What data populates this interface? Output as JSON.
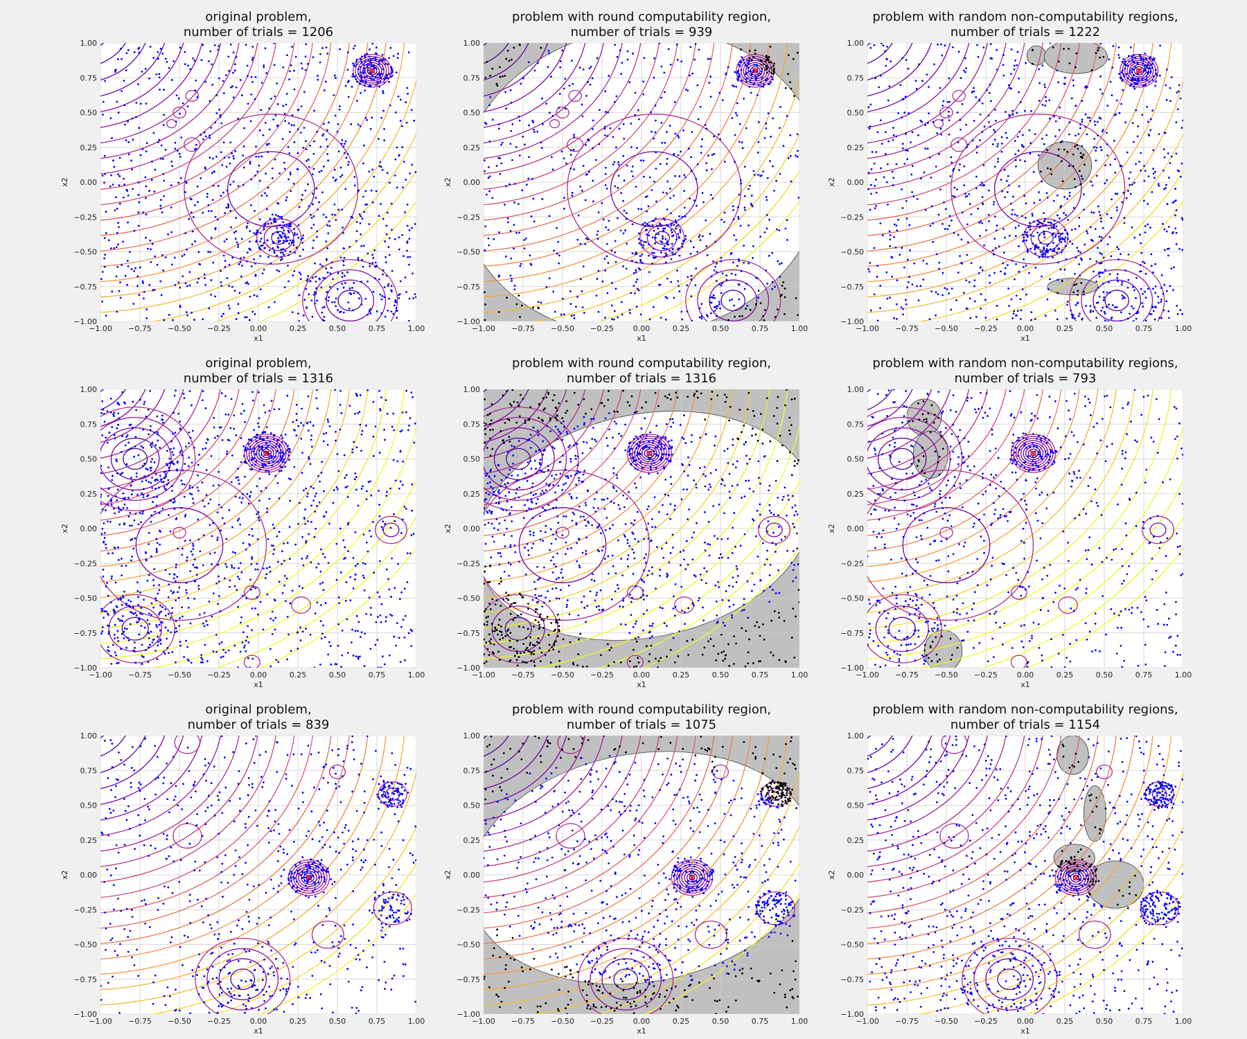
{
  "figure": {
    "background": "#f0f0f0",
    "plot_background": "#ffffff",
    "region_color": "#c0c0c0",
    "point_color": "#0000ff",
    "excluded_point_color": "#000000",
    "optimum_color": "#ff0000",
    "grid_color": "#cccccc"
  },
  "chart_data": [
    {
      "type": "scatter",
      "row": 0,
      "col": 0,
      "title_line1": "original problem,",
      "title_line2": "number of trials = 1206",
      "xlabel": "x1",
      "ylabel": "x2",
      "xlim": [
        -1,
        1
      ],
      "ylim": [
        -1,
        1
      ],
      "xticks": [
        "−1.00",
        "−0.75",
        "−0.50",
        "−0.25",
        "0.00",
        "0.25",
        "0.50",
        "0.75",
        "1.00"
      ],
      "yticks": [
        "−1.00",
        "−0.75",
        "−0.50",
        "−0.25",
        "0.00",
        "0.25",
        "0.50",
        "0.75",
        "1.00"
      ],
      "grid": true,
      "variant": "original",
      "trials": 1206,
      "seed": 11,
      "optimum": [
        0.72,
        0.8
      ],
      "centers": [
        {
          "x": 0.72,
          "y": 0.8,
          "r": 0.12,
          "rings": 8
        },
        {
          "x": 0.08,
          "y": -0.05,
          "r": 0.55,
          "rings": 2
        },
        {
          "x": 0.58,
          "y": -0.85,
          "r": 0.3,
          "rings": 4
        },
        {
          "x": 0.13,
          "y": -0.4,
          "r": 0.14,
          "rings": 3
        },
        {
          "x": -0.42,
          "y": 0.62,
          "r": 0.04,
          "rings": 1
        },
        {
          "x": -0.5,
          "y": 0.5,
          "r": 0.04,
          "rings": 1
        },
        {
          "x": -0.55,
          "y": 0.42,
          "r": 0.03,
          "rings": 1
        },
        {
          "x": -0.42,
          "y": 0.27,
          "r": 0.05,
          "rings": 1
        }
      ],
      "regions": []
    },
    {
      "type": "scatter",
      "row": 0,
      "col": 1,
      "title_line1": "problem with round computability region,",
      "title_line2": "number of trials = 939",
      "xlabel": "x1",
      "ylabel": "x2",
      "xlim": [
        -1,
        1
      ],
      "ylim": [
        -1,
        1
      ],
      "xticks": [
        "−1.00",
        "−0.75",
        "−0.50",
        "−0.25",
        "0.00",
        "0.25",
        "0.50",
        "0.75",
        "1.00"
      ],
      "yticks": [
        "−1.00",
        "−0.75",
        "−0.50",
        "−0.25",
        "0.00",
        "0.25",
        "0.50",
        "0.75",
        "1.00"
      ],
      "grid": true,
      "variant": "round",
      "trials": 939,
      "seed": 23,
      "optimum": [
        0.72,
        0.8
      ],
      "centers": [
        {
          "x": 0.72,
          "y": 0.8,
          "r": 0.12,
          "rings": 8
        },
        {
          "x": 0.08,
          "y": -0.05,
          "r": 0.55,
          "rings": 2
        },
        {
          "x": 0.58,
          "y": -0.85,
          "r": 0.3,
          "rings": 4
        },
        {
          "x": 0.13,
          "y": -0.4,
          "r": 0.14,
          "rings": 3
        },
        {
          "x": -0.42,
          "y": 0.62,
          "r": 0.04,
          "rings": 1
        },
        {
          "x": -0.5,
          "y": 0.5,
          "r": 0.04,
          "rings": 1
        },
        {
          "x": -0.55,
          "y": 0.42,
          "r": 0.03,
          "rings": 1
        },
        {
          "x": -0.42,
          "y": 0.27,
          "r": 0.05,
          "rings": 1
        }
      ],
      "regions": [
        {
          "cx": 0.0,
          "cy": 0.0,
          "rx": 1.15,
          "ry": 1.1,
          "rot": -8
        }
      ]
    },
    {
      "type": "scatter",
      "row": 0,
      "col": 2,
      "title_line1": "problem with random non-computability regions,",
      "title_line2": "number of trials = 1222",
      "xlabel": "x1",
      "ylabel": "x2",
      "xlim": [
        -1,
        1
      ],
      "ylim": [
        -1,
        1
      ],
      "xticks": [
        "−1.00",
        "−0.75",
        "−0.50",
        "−0.25",
        "0.00",
        "0.25",
        "0.50",
        "0.75",
        "1.00"
      ],
      "yticks": [
        "−1.00",
        "−0.75",
        "−0.50",
        "−0.25",
        "0.00",
        "0.25",
        "0.50",
        "0.75",
        "1.00"
      ],
      "grid": true,
      "variant": "random",
      "trials": 1222,
      "seed": 37,
      "optimum": [
        0.72,
        0.8
      ],
      "centers": [
        {
          "x": 0.72,
          "y": 0.8,
          "r": 0.12,
          "rings": 8
        },
        {
          "x": 0.08,
          "y": -0.05,
          "r": 0.55,
          "rings": 2
        },
        {
          "x": 0.58,
          "y": -0.85,
          "r": 0.3,
          "rings": 4
        },
        {
          "x": 0.13,
          "y": -0.4,
          "r": 0.14,
          "rings": 3
        },
        {
          "x": -0.42,
          "y": 0.62,
          "r": 0.04,
          "rings": 1
        },
        {
          "x": -0.5,
          "y": 0.5,
          "r": 0.04,
          "rings": 1
        },
        {
          "x": -0.55,
          "y": 0.42,
          "r": 0.03,
          "rings": 1
        },
        {
          "x": -0.42,
          "y": 0.27,
          "r": 0.05,
          "rings": 1
        }
      ],
      "regions": [
        {
          "cx": 0.07,
          "cy": 0.91,
          "rx": 0.06,
          "ry": 0.07,
          "rot": 0
        },
        {
          "cx": 0.32,
          "cy": 0.9,
          "rx": 0.2,
          "ry": 0.12,
          "rot": 0
        },
        {
          "cx": 0.25,
          "cy": 0.12,
          "rx": 0.17,
          "ry": 0.17,
          "rot": 0
        },
        {
          "cx": 0.3,
          "cy": -0.75,
          "rx": 0.16,
          "ry": 0.06,
          "rot": 0
        }
      ]
    },
    {
      "type": "scatter",
      "row": 1,
      "col": 0,
      "title_line1": "original problem,",
      "title_line2": "number of trials = 1316",
      "xlabel": "x1",
      "ylabel": "x2",
      "xlim": [
        -1,
        1
      ],
      "ylim": [
        -1,
        1
      ],
      "xticks": [
        "−1.00",
        "−0.75",
        "−0.50",
        "−0.25",
        "0.00",
        "0.25",
        "0.50",
        "0.75",
        "1.00"
      ],
      "yticks": [
        "−1.00",
        "−0.75",
        "−0.50",
        "−0.25",
        "0.00",
        "0.25",
        "0.50",
        "0.75",
        "1.00"
      ],
      "grid": true,
      "variant": "original",
      "trials": 1316,
      "seed": 41,
      "optimum": [
        0.05,
        0.54
      ],
      "centers": [
        {
          "x": 0.05,
          "y": 0.54,
          "r": 0.14,
          "rings": 9
        },
        {
          "x": -0.78,
          "y": 0.5,
          "r": 0.38,
          "rings": 5
        },
        {
          "x": -0.5,
          "y": -0.12,
          "r": 0.55,
          "rings": 2
        },
        {
          "x": -0.78,
          "y": -0.72,
          "r": 0.25,
          "rings": 3
        },
        {
          "x": 0.84,
          "y": -0.01,
          "r": 0.1,
          "rings": 2
        },
        {
          "x": -0.5,
          "y": -0.03,
          "r": 0.04,
          "rings": 1
        },
        {
          "x": -0.04,
          "y": -0.46,
          "r": 0.05,
          "rings": 1
        },
        {
          "x": 0.27,
          "y": -0.55,
          "r": 0.06,
          "rings": 1
        },
        {
          "x": -0.04,
          "y": -0.96,
          "r": 0.05,
          "rings": 1
        }
      ],
      "regions": []
    },
    {
      "type": "scatter",
      "row": 1,
      "col": 1,
      "title_line1": "problem with round computability region,",
      "title_line2": "number of trials = 1316",
      "xlabel": "x1",
      "ylabel": "x2",
      "xlim": [
        -1,
        1
      ],
      "ylim": [
        -1,
        1
      ],
      "xticks": [
        "−1.00",
        "−0.75",
        "−0.50",
        "−0.25",
        "0.00",
        "0.25",
        "0.50",
        "0.75",
        "1.00"
      ],
      "yticks": [
        "−1.00",
        "−0.75",
        "−0.50",
        "−0.25",
        "0.00",
        "0.25",
        "0.50",
        "0.75",
        "1.00"
      ],
      "grid": true,
      "variant": "round",
      "trials": 1316,
      "seed": 53,
      "optimum": [
        0.05,
        0.54
      ],
      "centers": [
        {
          "x": 0.05,
          "y": 0.54,
          "r": 0.14,
          "rings": 9
        },
        {
          "x": -0.78,
          "y": 0.5,
          "r": 0.38,
          "rings": 5
        },
        {
          "x": -0.5,
          "y": -0.12,
          "r": 0.55,
          "rings": 2
        },
        {
          "x": -0.78,
          "y": -0.72,
          "r": 0.25,
          "rings": 3
        },
        {
          "x": 0.84,
          "y": -0.01,
          "r": 0.1,
          "rings": 2
        },
        {
          "x": -0.5,
          "y": -0.03,
          "r": 0.04,
          "rings": 1
        },
        {
          "x": -0.04,
          "y": -0.46,
          "r": 0.05,
          "rings": 1
        },
        {
          "x": 0.27,
          "y": -0.55,
          "r": 0.06,
          "rings": 1
        },
        {
          "x": -0.04,
          "y": -0.96,
          "r": 0.05,
          "rings": 1
        }
      ],
      "regions": [
        {
          "cx": 0.02,
          "cy": 0.02,
          "rx": 1.08,
          "ry": 0.8,
          "rot": -12
        }
      ]
    },
    {
      "type": "scatter",
      "row": 1,
      "col": 2,
      "title_line1": "problem with random non-computability regions,",
      "title_line2": "number of trials = 793",
      "xlabel": "x1",
      "ylabel": "x2",
      "xlim": [
        -1,
        1
      ],
      "ylim": [
        -1,
        1
      ],
      "xticks": [
        "−1.00",
        "−0.75",
        "−0.50",
        "−0.25",
        "0.00",
        "0.25",
        "0.50",
        "0.75",
        "1.00"
      ],
      "yticks": [
        "−1.00",
        "−0.75",
        "−0.50",
        "−0.25",
        "0.00",
        "0.25",
        "0.50",
        "0.75",
        "1.00"
      ],
      "grid": true,
      "variant": "random",
      "trials": 793,
      "seed": 67,
      "optimum": [
        0.05,
        0.54
      ],
      "centers": [
        {
          "x": 0.05,
          "y": 0.54,
          "r": 0.14,
          "rings": 9
        },
        {
          "x": -0.78,
          "y": 0.5,
          "r": 0.38,
          "rings": 5
        },
        {
          "x": -0.5,
          "y": -0.12,
          "r": 0.55,
          "rings": 2
        },
        {
          "x": -0.78,
          "y": -0.72,
          "r": 0.25,
          "rings": 3
        },
        {
          "x": 0.84,
          "y": -0.01,
          "r": 0.1,
          "rings": 2
        },
        {
          "x": -0.5,
          "y": -0.03,
          "r": 0.04,
          "rings": 1
        },
        {
          "x": -0.04,
          "y": -0.46,
          "r": 0.05,
          "rings": 1
        },
        {
          "x": 0.27,
          "y": -0.55,
          "r": 0.06,
          "rings": 1
        },
        {
          "x": -0.04,
          "y": -0.96,
          "r": 0.05,
          "rings": 1
        }
      ],
      "regions": [
        {
          "cx": -0.64,
          "cy": 0.8,
          "rx": 0.11,
          "ry": 0.13,
          "rot": 0
        },
        {
          "cx": -0.6,
          "cy": 0.53,
          "rx": 0.11,
          "ry": 0.17,
          "rot": 0
        },
        {
          "cx": -0.52,
          "cy": -0.88,
          "rx": 0.12,
          "ry": 0.15,
          "rot": 0
        }
      ]
    },
    {
      "type": "scatter",
      "row": 2,
      "col": 0,
      "title_line1": "original problem,",
      "title_line2": "number of trials = 839",
      "xlabel": "x1",
      "ylabel": "x2",
      "xlim": [
        -1,
        1
      ],
      "ylim": [
        -1,
        1
      ],
      "xticks": [
        "−1.00",
        "−0.75",
        "−0.50",
        "−0.25",
        "0.00",
        "0.25",
        "0.50",
        "0.75",
        "1.00"
      ],
      "yticks": [
        "−1.00",
        "−0.75",
        "−0.50",
        "−0.25",
        "0.00",
        "0.25",
        "0.50",
        "0.75",
        "1.00"
      ],
      "grid": true,
      "variant": "original",
      "trials": 839,
      "seed": 71,
      "optimum": [
        0.32,
        -0.02
      ],
      "centers": [
        {
          "x": 0.32,
          "y": -0.02,
          "r": 0.13,
          "rings": 8
        },
        {
          "x": -0.1,
          "y": -0.75,
          "r": 0.3,
          "rings": 4
        },
        {
          "x": 0.85,
          "y": 0.58,
          "r": 0.09,
          "rings": 2
        },
        {
          "x": 0.85,
          "y": -0.24,
          "r": 0.12,
          "rings": 1
        },
        {
          "x": 0.44,
          "y": -0.43,
          "r": 0.1,
          "rings": 1
        },
        {
          "x": 0.5,
          "y": 0.74,
          "r": 0.05,
          "rings": 1
        },
        {
          "x": -0.45,
          "y": 0.28,
          "r": 0.09,
          "rings": 1
        },
        {
          "x": -0.45,
          "y": 0.95,
          "r": 0.08,
          "rings": 1
        }
      ],
      "regions": []
    },
    {
      "type": "scatter",
      "row": 2,
      "col": 1,
      "title_line1": "problem with round computability region,",
      "title_line2": "number of trials = 1075",
      "xlabel": "x1",
      "ylabel": "x2",
      "xlim": [
        -1,
        1
      ],
      "ylim": [
        -1,
        1
      ],
      "xticks": [
        "−1.00",
        "−0.75",
        "−0.50",
        "−0.25",
        "0.00",
        "0.25",
        "0.50",
        "0.75",
        "1.00"
      ],
      "yticks": [
        "−1.00",
        "−0.75",
        "−0.50",
        "−0.25",
        "0.00",
        "0.25",
        "0.50",
        "0.75",
        "1.00"
      ],
      "grid": true,
      "variant": "round",
      "trials": 1075,
      "seed": 83,
      "optimum": [
        0.32,
        -0.02
      ],
      "centers": [
        {
          "x": 0.32,
          "y": -0.02,
          "r": 0.13,
          "rings": 8
        },
        {
          "x": -0.1,
          "y": -0.75,
          "r": 0.3,
          "rings": 4
        },
        {
          "x": 0.85,
          "y": 0.58,
          "r": 0.09,
          "rings": 2
        },
        {
          "x": 0.85,
          "y": -0.24,
          "r": 0.12,
          "rings": 1
        },
        {
          "x": 0.44,
          "y": -0.43,
          "r": 0.1,
          "rings": 1
        },
        {
          "x": 0.5,
          "y": 0.74,
          "r": 0.05,
          "rings": 1
        },
        {
          "x": -0.45,
          "y": 0.28,
          "r": 0.09,
          "rings": 1
        },
        {
          "x": -0.45,
          "y": 0.95,
          "r": 0.08,
          "rings": 1
        }
      ],
      "regions": [
        {
          "cx": 0.0,
          "cy": 0.05,
          "rx": 1.1,
          "ry": 0.82,
          "rot": -10
        }
      ]
    },
    {
      "type": "scatter",
      "row": 2,
      "col": 2,
      "title_line1": "problem with random non-computability regions,",
      "title_line2": "number of trials = 1154",
      "xlabel": "x1",
      "ylabel": "x2",
      "xlim": [
        -1,
        1
      ],
      "ylim": [
        -1,
        1
      ],
      "xticks": [
        "−1.00",
        "−0.75",
        "−0.50",
        "−0.25",
        "0.00",
        "0.25",
        "0.50",
        "0.75",
        "1.00"
      ],
      "yticks": [
        "−1.00",
        "−0.75",
        "−0.50",
        "−0.25",
        "0.00",
        "0.25",
        "0.50",
        "0.75",
        "1.00"
      ],
      "grid": true,
      "variant": "random",
      "trials": 1154,
      "seed": 97,
      "optimum": [
        0.32,
        -0.02
      ],
      "centers": [
        {
          "x": 0.32,
          "y": -0.02,
          "r": 0.13,
          "rings": 8
        },
        {
          "x": -0.1,
          "y": -0.75,
          "r": 0.3,
          "rings": 4
        },
        {
          "x": 0.85,
          "y": 0.58,
          "r": 0.09,
          "rings": 2
        },
        {
          "x": 0.85,
          "y": -0.24,
          "r": 0.12,
          "rings": 1
        },
        {
          "x": 0.44,
          "y": -0.43,
          "r": 0.1,
          "rings": 1
        },
        {
          "x": 0.5,
          "y": 0.74,
          "r": 0.05,
          "rings": 1
        },
        {
          "x": -0.45,
          "y": 0.28,
          "r": 0.09,
          "rings": 1
        },
        {
          "x": -0.45,
          "y": 0.95,
          "r": 0.08,
          "rings": 1
        }
      ],
      "regions": [
        {
          "cx": 0.3,
          "cy": 0.86,
          "rx": 0.1,
          "ry": 0.14,
          "rot": 0
        },
        {
          "cx": 0.44,
          "cy": 0.44,
          "rx": 0.07,
          "ry": 0.2,
          "rot": 0
        },
        {
          "cx": 0.31,
          "cy": 0.12,
          "rx": 0.13,
          "ry": 0.1,
          "rot": 0
        },
        {
          "cx": 0.57,
          "cy": -0.07,
          "rx": 0.18,
          "ry": 0.17,
          "rot": 0
        }
      ]
    }
  ]
}
